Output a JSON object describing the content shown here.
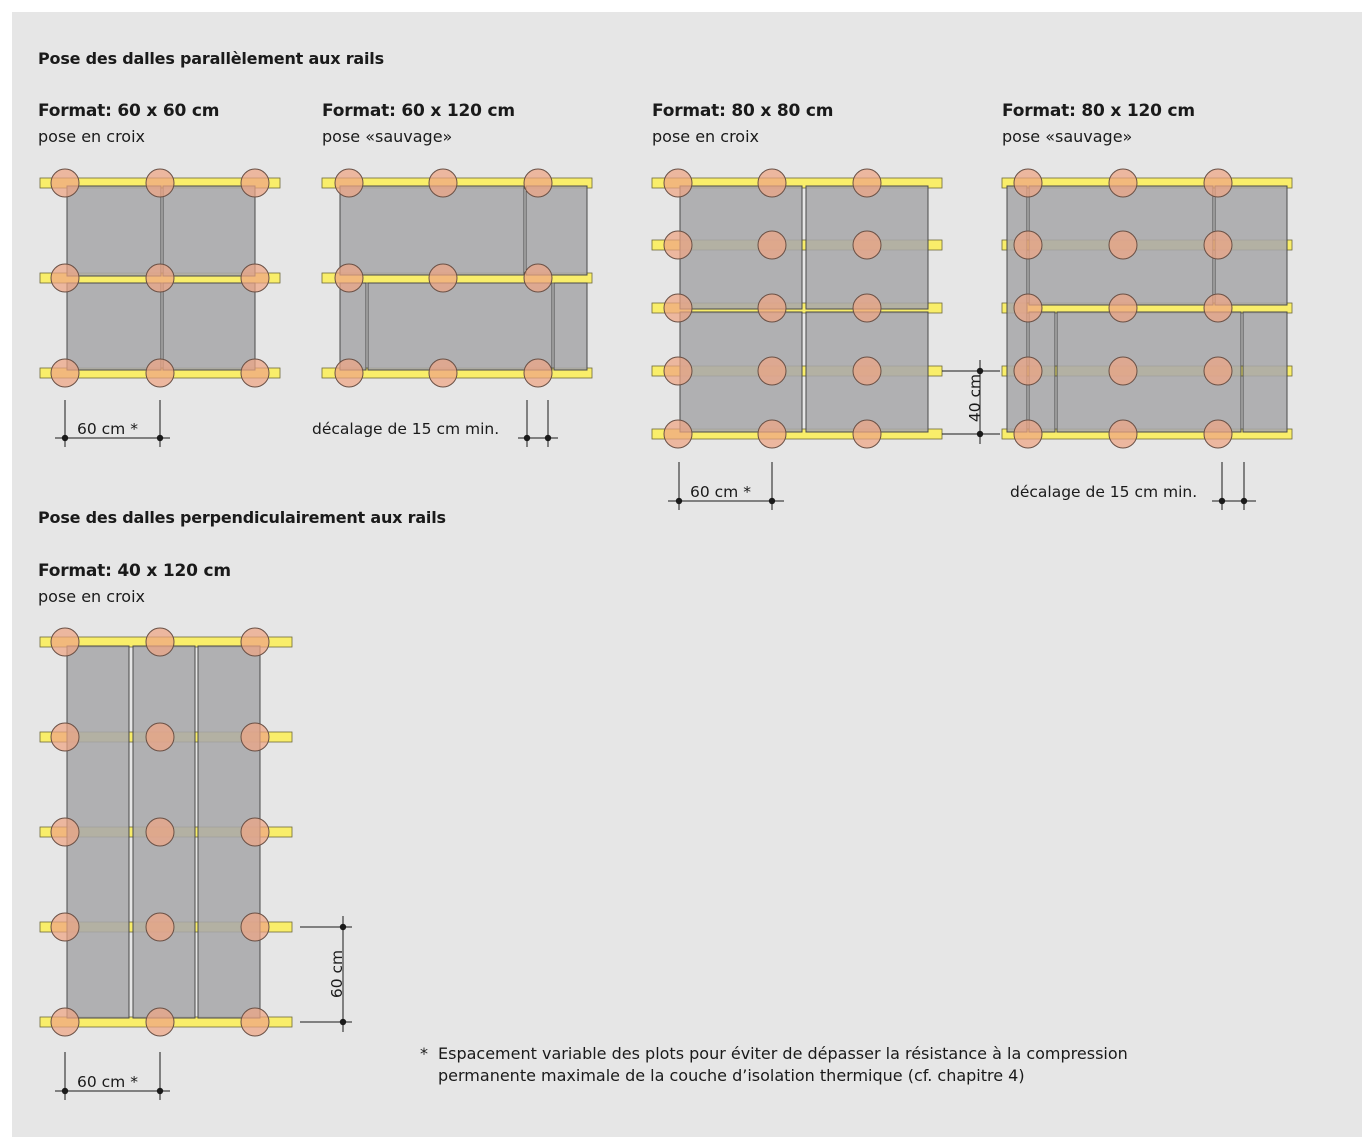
{
  "sections": {
    "parallel_title": "Pose des dalles parallèlement aux rails",
    "perpendicular_title": "Pose des dalles perpendiculairement aux rails"
  },
  "diagrams": [
    {
      "format": "Format: 60 x 60 cm",
      "laying": "pose en croix",
      "dimension": "60 cm *"
    },
    {
      "format": "Format: 60 x 120 cm",
      "laying": "pose «sauvage»",
      "dimension": "décalage de 15 cm min."
    },
    {
      "format": "Format: 80 x 80 cm",
      "laying": "pose en croix",
      "dimension": "60 cm *",
      "dimension_vertical": "40 cm"
    },
    {
      "format": "Format: 80 x 120 cm",
      "laying": "pose «sauvage»",
      "dimension": "décalage de 15 cm min."
    },
    {
      "format": "Format: 40 x 120 cm",
      "laying": "pose en croix",
      "dimension": "60 cm *",
      "dimension_vertical": "60 cm"
    }
  ],
  "footnote": {
    "marker": "*",
    "line1": "Espacement variable des plots pour éviter de dépasser la résistance à la compression",
    "line2": "permanente maximale de la couche d’isolation thermique (cf. chapitre 4)"
  },
  "colors": {
    "background": "#e6e6e6",
    "rail": "#f9ee6a",
    "pad": "#eea583",
    "tile": "#a9a9ab"
  }
}
